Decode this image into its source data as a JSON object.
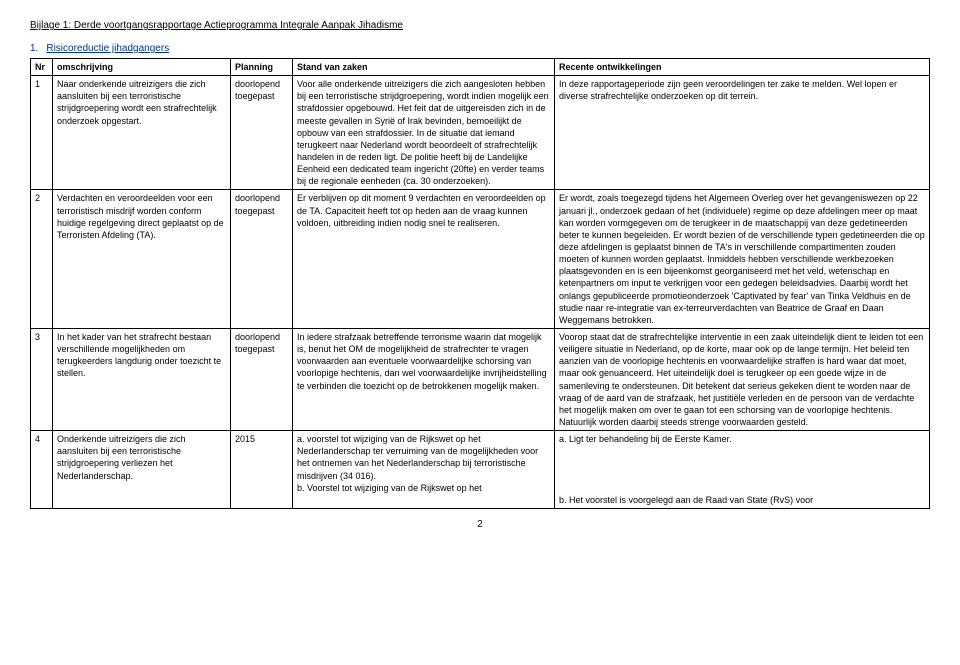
{
  "attachment_title": "Bijlage 1: Derde voortgangsrapportage Actieprogramma Integrale Aanpak Jihadisme",
  "section": {
    "num": "1.",
    "label": "Risicoreductie jihadgangers"
  },
  "columns": {
    "nr": "Nr",
    "omschrijving": "omschrijving",
    "planning": "Planning",
    "stand": "Stand van zaken",
    "recente": "Recente ontwikkelingen"
  },
  "rows": [
    {
      "nr": "1",
      "omschrijving": "Naar onderkende uitreizigers die zich aansluiten bij een terroristische strijdgroepering wordt een strafrechtelijk onderzoek opgestart.",
      "planning": "doorlopend toegepast",
      "stand": "Voor alle onderkende uitreizigers die zich aangesloten hebben bij een terroristische strijdgroepering, wordt indien mogelijk een strafdossier opgebouwd. Het feit dat de uitgereisden zich in de meeste gevallen in Syrië of Irak bevinden, bemoeilijkt de opbouw van een strafdossier. In de situatie dat iemand terugkeert naar Nederland wordt beoordeelt of strafrechtelijk handelen in de reden ligt. De politie heeft bij de Landelijke Eenheid een dedicated team ingericht (20fte) en verder teams bij de regionale eenheden (ca. 30 onderzoeken).",
      "recente": "In deze rapportageperiode zijn geen veroordelingen ter zake te melden. Wel lopen er diverse strafrechtelijke onderzoeken op dit terrein."
    },
    {
      "nr": "2",
      "omschrijving": "Verdachten en veroordeelden voor een terroristisch misdrijf worden conform huidige regelgeving direct geplaatst op de Terroristen Afdeling (TA).",
      "planning": "doorlopend toegepast",
      "stand": "Er verblijven op dit moment 9 verdachten en veroordeelden op de TA. Capaciteit heeft tot op heden aan de vraag kunnen voldoen, uitbreiding indien nodig snel te realiseren.",
      "recente": "Er wordt, zoals toegezegd tijdens het Algemeen Overleg over het gevangeniswezen op 22 januari jl., onderzoek gedaan of het (individuele) regime op deze afdelingen meer op maat kan worden vormgegeven om de terugkeer in de maatschappij van deze gedetineerden beter te kunnen begeleiden. Er wordt bezien of de verschillende typen gedetineerden die op deze afdelingen is geplaatst binnen de TA's in verschillende compartimenten zouden moeten of kunnen worden geplaatst. Inmiddels hebben verschillende werkbezoeken plaatsgevonden en is een bijeenkomst georganiseerd met het veld, wetenschap en ketenpartners om input te verkrijgen voor een gedegen beleidsadvies. Daarbij wordt het onlangs gepubliceerde promotieonderzoek 'Captivated by fear' van Tinka Veldhuis en de studie naar re-integratie van ex-terreurverdachten van Beatrice de Graaf en Daan Weggemans betrokken."
    },
    {
      "nr": "3",
      "omschrijving": "In het kader van het strafrecht bestaan verschillende mogelijkheden om terugkeerders langdurig onder toezicht te stellen.",
      "planning": "doorlopend toegepast",
      "stand": "In iedere strafzaak betreffende terrorisme waarin dat mogelijk is, benut het OM de mogelijkheid de strafrechter te vragen voorwaarden aan eventuele voorwaardelijke schorsing van voorlopige hechtenis, dan wel voorwaardelijke invrijheidstelling te verbinden die toezicht op de betrokkenen mogelijk maken.",
      "recente": "Voorop staat dat de strafrechtelijke interventie in een zaak uiteindelijk dient te leiden tot een veiligere situatie in Nederland, op de korte, maar ook op de lange termijn. Het beleid ten aanzien van de voorlopige hechtenis en voorwaardelijke straffen is hard waar dat moet, maar ook genuanceerd. Het uiteindelijk doel is terugkeer op een goede wijze in de samenleving te ondersteunen. Dit betekent dat serieus gekeken dient te worden naar de vraag of de aard van de strafzaak, het justitiële verleden en de persoon van de verdachte het mogelijk maken om over te gaan tot een schorsing van de voorlopige hechtenis. Natuurlijk worden daarbij steeds strenge voorwaarden gesteld."
    },
    {
      "nr": "4",
      "omschrijving": "Onderkende uitreizigers die zich aansluiten bij een terroristische strijdgroepering verliezen het Nederlanderschap.",
      "planning": "2015",
      "stand": "a. voorstel tot wijziging van de Rijkswet op het Nederlanderschap ter verruiming van de mogelijkheden voor het ontnemen van het Nederlanderschap bij terroristische misdrijven (34 016).\nb. Voorstel tot wijziging van de Rijkswet op het",
      "recente": "a.  Ligt ter behandeling bij de Eerste Kamer.\n\n\n\n\nb. Het voorstel is voorgelegd aan de Raad van State (RvS) voor"
    }
  ],
  "page_number": "2"
}
